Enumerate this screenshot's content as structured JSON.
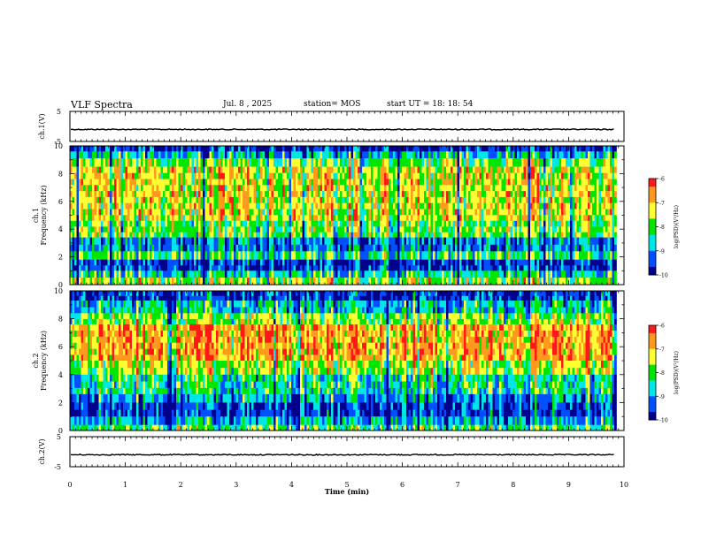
{
  "header": {
    "title": "VLF Spectra",
    "date": "Jul. 8 , 2025",
    "station": "station= MOS",
    "start_ut": "start UT =  18: 18: 54"
  },
  "chart_data": [
    {
      "type": "line",
      "panel": "ch.1 waveform",
      "ylabel": "ch.1(V)",
      "ylim": [
        -5,
        5
      ],
      "yticks": [
        "5",
        "-5"
      ],
      "xlim": [
        0,
        10
      ],
      "baseline_value": -1,
      "color": "#000000"
    },
    {
      "type": "heatmap",
      "panel": "ch.1 spectrogram",
      "ylabel": "Frequency (kHz)",
      "channel": "ch.1",
      "ylim": [
        0,
        10
      ],
      "yticks": [
        "0",
        "2",
        "4",
        "6",
        "8",
        "10"
      ],
      "xlim": [
        0,
        9.83
      ],
      "colorbar": {
        "label": "log(PSD)(V²/Hz)",
        "range": [
          -10,
          -6
        ],
        "ticks": [
          "-6",
          "-7",
          "-8",
          "-9",
          "-10"
        ],
        "colormap": [
          "#ff1818",
          "#ff9a1e",
          "#ffff32",
          "#00e600",
          "#00e6e6",
          "#0050ff",
          "#00008c"
        ]
      },
      "bands_khz": [
        {
          "from": 9.6,
          "to": 10.0,
          "level": -9.7
        },
        {
          "from": 9.1,
          "to": 9.6,
          "level": -8.7
        },
        {
          "from": 8.5,
          "to": 9.1,
          "level": -7.8
        },
        {
          "from": 4.6,
          "to": 8.5,
          "level": -7.3
        },
        {
          "from": 3.4,
          "to": 4.6,
          "level": -7.9
        },
        {
          "from": 2.4,
          "to": 3.4,
          "level": -9.1
        },
        {
          "from": 1.8,
          "to": 2.4,
          "level": -8.2
        },
        {
          "from": 1.0,
          "to": 1.8,
          "level": -9.6
        },
        {
          "from": 0.5,
          "to": 1.0,
          "level": -8.5
        },
        {
          "from": 0.0,
          "to": 0.5,
          "level": -7.6
        }
      ]
    },
    {
      "type": "heatmap",
      "panel": "ch.2 spectrogram",
      "ylabel": "Frequency (kHz)",
      "channel": "ch.2",
      "ylim": [
        0,
        10
      ],
      "yticks": [
        "0",
        "2",
        "4",
        "6",
        "8",
        "10"
      ],
      "xlim": [
        0,
        9.83
      ],
      "colorbar": {
        "label": "log(PSD)(V²/Hz)",
        "range": [
          -10,
          -6
        ],
        "ticks": [
          "-6",
          "-7",
          "-8",
          "-9",
          "-10"
        ],
        "colormap": [
          "#ff1818",
          "#ff9a1e",
          "#ffff32",
          "#00e600",
          "#00e6e6",
          "#0050ff",
          "#00008c"
        ]
      },
      "bands_khz": [
        {
          "from": 9.3,
          "to": 10.0,
          "level": -9.5
        },
        {
          "from": 8.4,
          "to": 9.3,
          "level": -8.6
        },
        {
          "from": 7.6,
          "to": 8.4,
          "level": -7.7
        },
        {
          "from": 5.0,
          "to": 7.6,
          "level": -6.7
        },
        {
          "from": 4.0,
          "to": 5.0,
          "level": -7.5
        },
        {
          "from": 2.6,
          "to": 4.0,
          "level": -8.3
        },
        {
          "from": 2.0,
          "to": 2.6,
          "level": -8.9
        },
        {
          "from": 1.0,
          "to": 2.0,
          "level": -9.5
        },
        {
          "from": 0.4,
          "to": 1.0,
          "level": -8.8
        },
        {
          "from": 0.0,
          "to": 0.4,
          "level": -8.0
        }
      ]
    },
    {
      "type": "line",
      "panel": "ch.2 waveform",
      "ylabel": "ch.2(V)",
      "ylim": [
        -5,
        5
      ],
      "yticks": [
        "5",
        "-5"
      ],
      "xlim": [
        0,
        10
      ],
      "baseline_value": -1,
      "color": "#000000"
    }
  ],
  "time_axis": {
    "label": "Time (min)",
    "range": [
      0,
      10
    ],
    "ticks": [
      "0",
      "1",
      "2",
      "3",
      "4",
      "5",
      "6",
      "7",
      "8",
      "9",
      "10"
    ]
  }
}
